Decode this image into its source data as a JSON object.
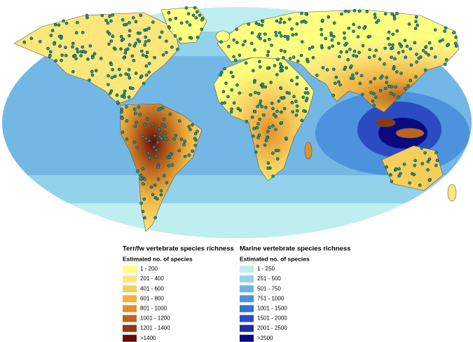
{
  "legend": {
    "terrestrial": {
      "title": "Terr/fw vertebrate species richness",
      "subtitle": "Estimated no. of species",
      "classes": [
        {
          "label": "1 - 200",
          "color": "#ffff80"
        },
        {
          "label": "201 - 400",
          "color": "#fde67a"
        },
        {
          "label": "401 - 600",
          "color": "#f7cd5c"
        },
        {
          "label": "601 - 800",
          "color": "#efb040"
        },
        {
          "label": "801 - 1000",
          "color": "#e2902c"
        },
        {
          "label": "1001 - 1200",
          "color": "#b8661f"
        },
        {
          "label": "1201 - 1400",
          "color": "#8a3c14"
        },
        {
          "label": ">1400",
          "color": "#6a0b0b"
        }
      ]
    },
    "marine": {
      "title": "Marine vertebrate species richness",
      "subtitle": "Estimated no. of species",
      "classes": [
        {
          "label": "1 - 250",
          "color": "#bfeef0"
        },
        {
          "label": "251 - 500",
          "color": "#92d2ea"
        },
        {
          "label": "501 - 750",
          "color": "#6cb2e2"
        },
        {
          "label": "751 - 1000",
          "color": "#4c92dc"
        },
        {
          "label": "1001 - 1500",
          "color": "#3072d4"
        },
        {
          "label": "1501 - 2000",
          "color": "#2a4cc0"
        },
        {
          "label": "2001 - 2500",
          "color": "#1e2ea0"
        },
        {
          "label": ">2500",
          "color": "#0a0a80"
        }
      ]
    }
  }
}
